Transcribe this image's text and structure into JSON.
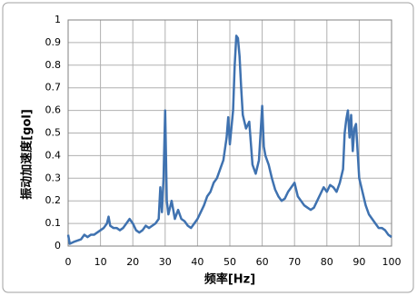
{
  "chart_data": {
    "type": "line",
    "x_label": "频率[Hz]",
    "y_label": "振动加速度[gol]",
    "x": [
      0,
      0.5,
      2,
      4,
      5,
      6,
      7,
      8,
      9,
      10,
      11,
      12,
      12.5,
      13,
      14,
      15,
      16,
      17,
      18,
      19,
      20,
      21,
      22,
      23,
      24,
      25,
      26,
      27,
      28,
      28.5,
      29,
      29.5,
      30,
      30.5,
      31,
      32,
      33,
      34,
      35,
      36,
      37,
      38,
      39,
      40,
      41,
      42,
      43,
      44,
      45,
      46,
      47,
      48,
      49,
      49.5,
      50,
      51,
      51.5,
      52,
      52.5,
      53,
      53.5,
      54,
      55,
      56,
      57,
      58,
      59,
      59.5,
      60,
      60.5,
      61,
      62,
      63,
      64,
      65,
      66,
      67,
      68,
      69,
      70,
      71,
      72,
      73,
      74,
      75,
      76,
      77,
      78,
      79,
      80,
      81,
      82,
      83,
      84,
      85,
      85.5,
      86,
      86.5,
      87,
      87.5,
      88,
      88.5,
      89,
      89.5,
      90,
      91,
      92,
      93,
      94,
      95,
      96,
      97,
      98,
      99,
      100
    ],
    "series": [
      {
        "color": "#3f72b0",
        "values": [
          0.05,
          0.01,
          0.02,
          0.03,
          0.05,
          0.04,
          0.05,
          0.05,
          0.06,
          0.07,
          0.08,
          0.1,
          0.13,
          0.09,
          0.08,
          0.08,
          0.07,
          0.08,
          0.1,
          0.12,
          0.1,
          0.07,
          0.06,
          0.07,
          0.09,
          0.08,
          0.09,
          0.1,
          0.12,
          0.26,
          0.15,
          0.3,
          0.6,
          0.2,
          0.14,
          0.2,
          0.12,
          0.16,
          0.12,
          0.11,
          0.09,
          0.08,
          0.1,
          0.12,
          0.15,
          0.18,
          0.22,
          0.24,
          0.28,
          0.3,
          0.34,
          0.38,
          0.48,
          0.57,
          0.45,
          0.6,
          0.8,
          0.93,
          0.92,
          0.84,
          0.7,
          0.58,
          0.52,
          0.55,
          0.36,
          0.32,
          0.38,
          0.5,
          0.62,
          0.44,
          0.4,
          0.36,
          0.3,
          0.25,
          0.22,
          0.2,
          0.21,
          0.24,
          0.26,
          0.28,
          0.22,
          0.2,
          0.18,
          0.17,
          0.16,
          0.17,
          0.2,
          0.23,
          0.26,
          0.24,
          0.27,
          0.26,
          0.24,
          0.28,
          0.34,
          0.5,
          0.56,
          0.6,
          0.48,
          0.58,
          0.42,
          0.52,
          0.54,
          0.42,
          0.3,
          0.24,
          0.18,
          0.14,
          0.12,
          0.1,
          0.08,
          0.08,
          0.07,
          0.05,
          0.04
        ]
      }
    ],
    "xlim": [
      0,
      100
    ],
    "xticks": [
      0,
      10,
      20,
      30,
      40,
      50,
      60,
      70,
      80,
      90,
      100
    ],
    "ylim": [
      0,
      1
    ],
    "yticks": [
      0,
      0.1,
      0.2,
      0.3,
      0.4,
      0.5,
      0.6,
      0.7,
      0.8,
      0.9,
      1
    ],
    "grid": true
  }
}
